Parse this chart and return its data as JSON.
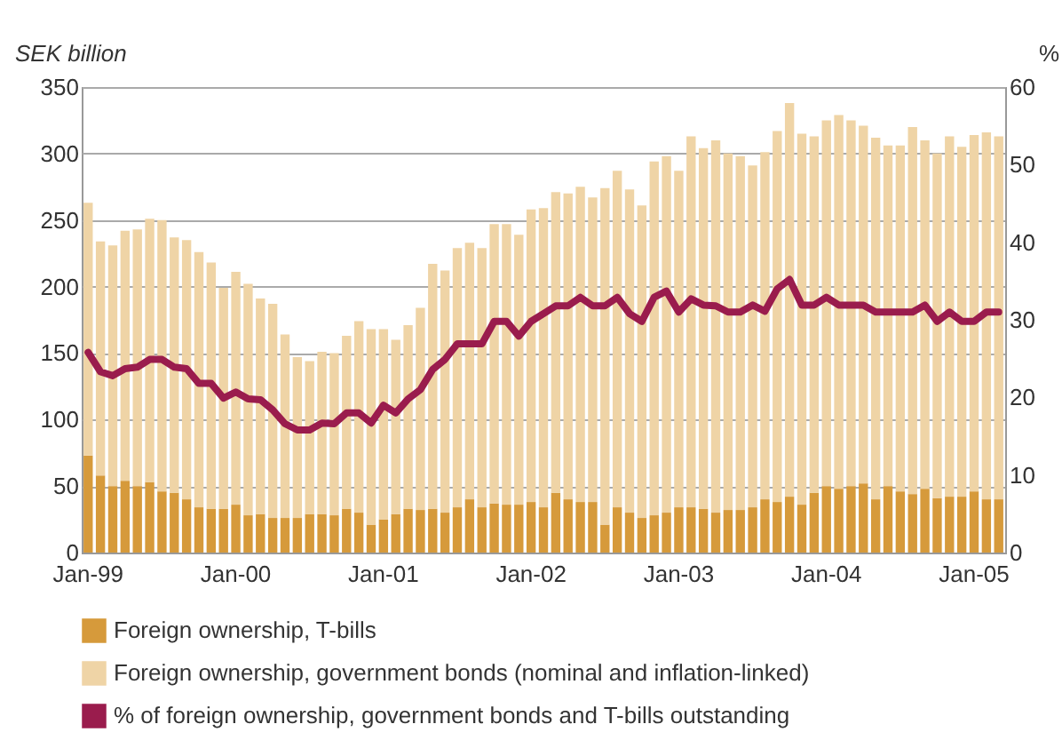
{
  "chart_data": {
    "type": "bar",
    "stacked": true,
    "ylabel": "SEK billion",
    "y2label": "%",
    "categories": [
      "Jan-99",
      null,
      null,
      null,
      null,
      null,
      null,
      null,
      null,
      null,
      null,
      null,
      "Jan-00",
      null,
      null,
      null,
      null,
      null,
      null,
      null,
      null,
      null,
      null,
      null,
      "Jan-01",
      null,
      null,
      null,
      null,
      null,
      null,
      null,
      null,
      null,
      null,
      null,
      "Jan-02",
      null,
      null,
      null,
      null,
      null,
      null,
      null,
      null,
      null,
      null,
      null,
      "Jan-03",
      null,
      null,
      null,
      null,
      null,
      null,
      null,
      null,
      null,
      null,
      null,
      "Jan-04",
      null,
      null,
      null,
      null,
      null,
      null,
      null,
      null,
      null,
      null,
      null,
      "Jan-05",
      null,
      null
    ],
    "ylim": [
      0,
      350
    ],
    "yticks": [
      0,
      50,
      100,
      150,
      200,
      250,
      300,
      350
    ],
    "y2lim": [
      0,
      60
    ],
    "y2ticks": [
      0,
      10,
      20,
      30,
      40,
      50,
      60
    ],
    "grid": "y",
    "legend": "bottom",
    "series": [
      {
        "name": "Foreign ownership, T-bills",
        "color": "#d69a3b",
        "values": [
          73,
          58,
          50,
          54,
          50,
          53,
          46,
          45,
          40,
          34,
          33,
          33,
          36,
          28,
          29,
          26,
          26,
          26,
          29,
          29,
          28,
          33,
          30,
          21,
          25,
          29,
          33,
          32,
          33,
          30,
          34,
          40,
          34,
          37,
          36,
          36,
          38,
          34,
          45,
          40,
          38,
          38,
          21,
          34,
          30,
          26,
          28,
          30,
          34,
          34,
          33,
          30,
          32,
          32,
          34,
          40,
          38,
          42,
          36,
          45,
          50,
          48,
          50,
          52,
          40,
          50,
          46,
          44,
          48,
          41,
          42,
          42,
          46,
          40,
          40
        ]
      },
      {
        "name": "Foreign ownership, government bonds (nominal and inflation-linked)",
        "color": "#efd4a6",
        "values": [
          190,
          176,
          181,
          188,
          193,
          198,
          204,
          192,
          195,
          192,
          185,
          166,
          175,
          174,
          162,
          161,
          138,
          121,
          115,
          122,
          122,
          130,
          144,
          147,
          143,
          131,
          138,
          152,
          184,
          182,
          195,
          193,
          195,
          210,
          211,
          203,
          220,
          225,
          226,
          230,
          237,
          229,
          253,
          253,
          243,
          235,
          266,
          268,
          253,
          279,
          271,
          280,
          268,
          266,
          257,
          261,
          279,
          296,
          279,
          268,
          275,
          281,
          275,
          269,
          272,
          256,
          260,
          276,
          262,
          259,
          271,
          263,
          268,
          276,
          273
        ]
      },
      {
        "name": "% of foreign ownership, government bonds and T-bills outstanding",
        "type": "line",
        "axis": "y2",
        "color": "#9a1c4d",
        "values": [
          25.8,
          23.3,
          22.8,
          23.7,
          23.9,
          24.9,
          24.9,
          23.9,
          23.7,
          21.8,
          21.8,
          19.9,
          20.7,
          19.8,
          19.7,
          18.4,
          16.6,
          15.8,
          15.8,
          16.7,
          16.6,
          18.0,
          18.0,
          16.7,
          19.0,
          18.0,
          19.8,
          21.0,
          23.6,
          24.9,
          26.9,
          26.9,
          26.9,
          29.8,
          29.8,
          27.9,
          29.8,
          30.8,
          31.8,
          31.8,
          32.9,
          31.8,
          31.8,
          32.9,
          30.8,
          29.8,
          32.9,
          33.7,
          31.0,
          32.7,
          31.9,
          31.8,
          31.0,
          31.0,
          31.9,
          31.1,
          34.0,
          35.2,
          31.9,
          31.9,
          32.9,
          31.9,
          31.9,
          31.9,
          31.0,
          31.0,
          31.0,
          31.0,
          31.9,
          29.8,
          31.0,
          29.8,
          29.8,
          31.0,
          31.0
        ]
      }
    ]
  }
}
